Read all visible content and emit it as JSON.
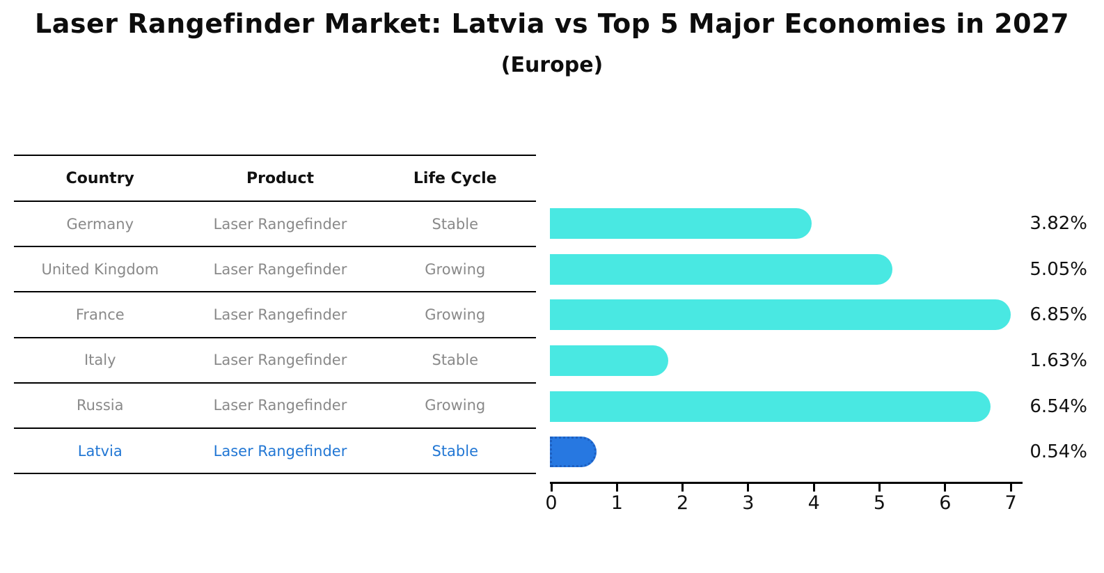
{
  "header": {
    "title": "Laser Rangefinder Market: Latvia vs Top 5 Major Economies in 2027",
    "subtitle": "(Europe)"
  },
  "table": {
    "headers": [
      "Country",
      "Product",
      "Life Cycle"
    ],
    "rows": [
      {
        "country": "Germany",
        "product": "Laser Rangefinder",
        "life_cycle": "Stable",
        "highlighted": false
      },
      {
        "country": "United Kingdom",
        "product": "Laser Rangefinder",
        "life_cycle": "Growing",
        "highlighted": false
      },
      {
        "country": "France",
        "product": "Laser Rangefinder",
        "life_cycle": "Growing",
        "highlighted": false
      },
      {
        "country": "Italy",
        "product": "Laser Rangefinder",
        "life_cycle": "Stable",
        "highlighted": false
      },
      {
        "country": "Russia",
        "product": "Laser Rangefinder",
        "life_cycle": "Growing",
        "highlighted": false
      },
      {
        "country": "Latvia",
        "product": "Laser Rangefinder",
        "life_cycle": "Stable",
        "highlighted": true
      }
    ]
  },
  "chart_data": {
    "type": "bar",
    "orientation": "horizontal",
    "title": "Laser Rangefinder Market: Latvia vs Top 5 Major Economies in 2027",
    "subtitle": "(Europe)",
    "categories": [
      "Germany",
      "United Kingdom",
      "France",
      "Italy",
      "Russia",
      "Latvia"
    ],
    "values": [
      3.82,
      5.05,
      6.85,
      1.63,
      6.54,
      0.54
    ],
    "value_labels": [
      "3.82%",
      "5.05%",
      "6.85%",
      "1.63%",
      "6.54%",
      "0.54%"
    ],
    "unit": "%",
    "xlabel": "",
    "ylabel": "",
    "xlim": [
      0,
      7.2
    ],
    "x_ticks": [
      0,
      1,
      2,
      3,
      4,
      5,
      6,
      7
    ],
    "grid": false,
    "legend": false,
    "highlight_index": 5,
    "bar_color": "#49E8E2",
    "highlight_bar_color": "#2778E1",
    "highlight_border_color": "#1d5fc0",
    "highlight_text_color": "#2277d4"
  },
  "colors": {
    "bar_cyan": "#49E8E2",
    "bar_blue": "#2778E1",
    "table_text_gray": "#898989",
    "text_black": "#111111",
    "line_black": "#000000"
  }
}
